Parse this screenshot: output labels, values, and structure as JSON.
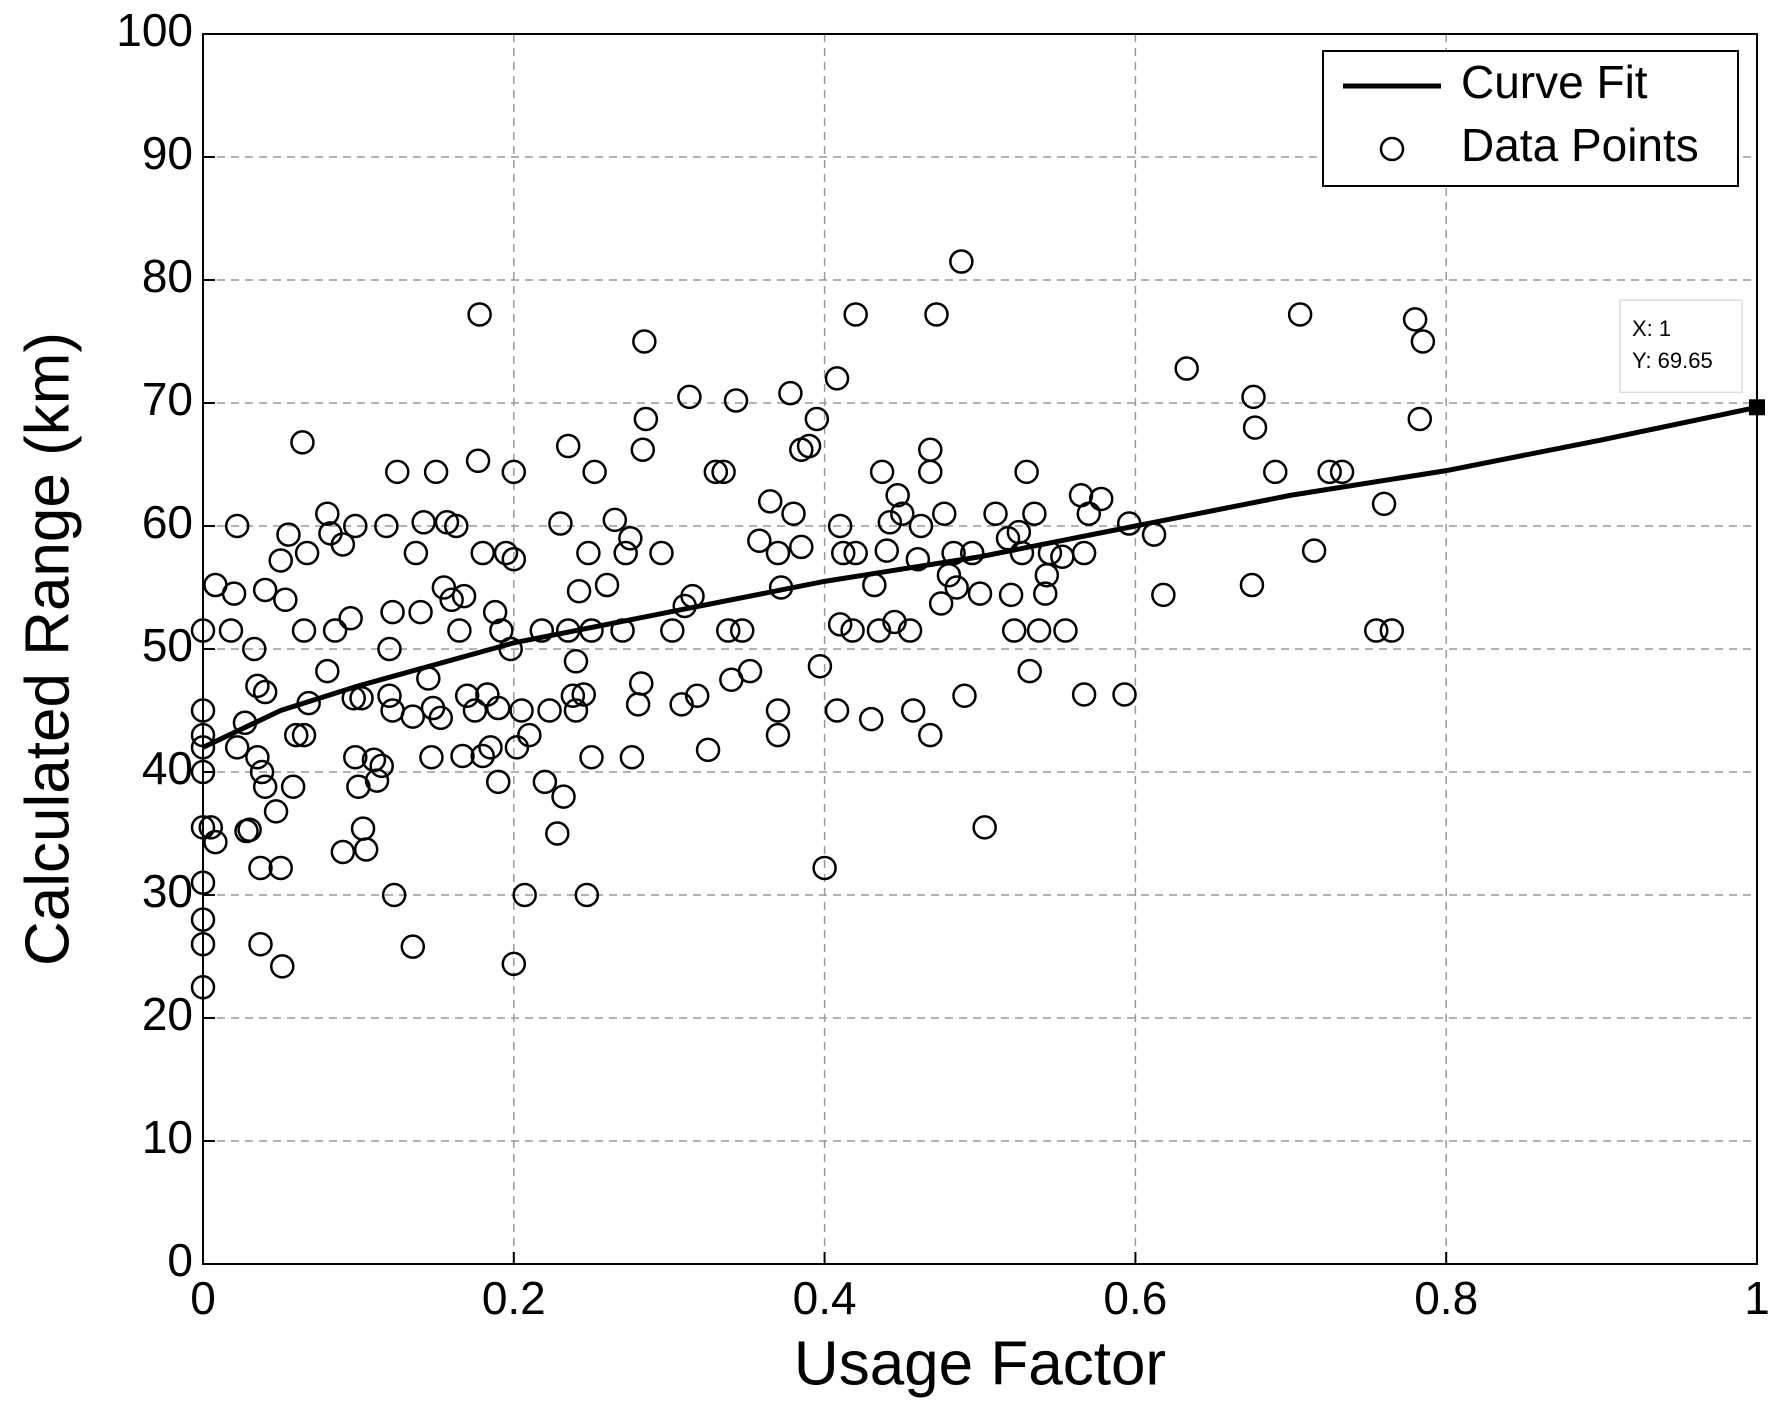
{
  "chart_data": {
    "type": "scatter",
    "xlabel": "Usage Factor",
    "ylabel": "Calculated Range (km)",
    "xlim": [
      0,
      1
    ],
    "ylim": [
      0,
      100
    ],
    "xticks": [
      0,
      0.2,
      0.4,
      0.6,
      0.8,
      1
    ],
    "yticks": [
      0,
      10,
      20,
      30,
      40,
      50,
      60,
      70,
      80,
      90,
      100
    ],
    "grid": true,
    "legend": "upper right",
    "series": [
      {
        "name": "Curve Fit",
        "type": "line",
        "color": "#000000",
        "x": [
          0,
          0.05,
          0.1,
          0.2,
          0.3,
          0.4,
          0.5,
          0.6,
          0.7,
          0.8,
          0.9,
          1
        ],
        "values": [
          42,
          45,
          47,
          50.5,
          53,
          55.5,
          57.5,
          60,
          62.5,
          64.5,
          67,
          69.65
        ]
      },
      {
        "name": "Data Points",
        "type": "scatter",
        "color": "#000000",
        "x": [
          0,
          0,
          0,
          0,
          0,
          0,
          0,
          0,
          0,
          0,
          0.005,
          0.008,
          0.008,
          0.018,
          0.02,
          0.022,
          0.022,
          0.027,
          0.028,
          0.03,
          0.033,
          0.035,
          0.035,
          0.037,
          0.037,
          0.038,
          0.04,
          0.04,
          0.04,
          0.047,
          0.05,
          0.05,
          0.051,
          0.053,
          0.055,
          0.058,
          0.06,
          0.064,
          0.065,
          0.065,
          0.067,
          0.068,
          0.08,
          0.08,
          0.082,
          0.085,
          0.09,
          0.09,
          0.095,
          0.097,
          0.098,
          0.098,
          0.1,
          0.102,
          0.103,
          0.105,
          0.11,
          0.112,
          0.115,
          0.118,
          0.12,
          0.12,
          0.122,
          0.122,
          0.123,
          0.125,
          0.135,
          0.135,
          0.137,
          0.14,
          0.142,
          0.145,
          0.147,
          0.148,
          0.15,
          0.153,
          0.155,
          0.157,
          0.16,
          0.163,
          0.165,
          0.167,
          0.168,
          0.17,
          0.175,
          0.177,
          0.178,
          0.18,
          0.18,
          0.183,
          0.185,
          0.188,
          0.19,
          0.19,
          0.192,
          0.195,
          0.198,
          0.2,
          0.2,
          0.2,
          0.202,
          0.205,
          0.207,
          0.21,
          0.218,
          0.22,
          0.223,
          0.228,
          0.23,
          0.232,
          0.235,
          0.235,
          0.238,
          0.24,
          0.24,
          0.242,
          0.245,
          0.247,
          0.248,
          0.25,
          0.25,
          0.252,
          0.26,
          0.265,
          0.27,
          0.272,
          0.275,
          0.276,
          0.28,
          0.282,
          0.283,
          0.284,
          0.285,
          0.295,
          0.302,
          0.308,
          0.31,
          0.313,
          0.315,
          0.318,
          0.325,
          0.33,
          0.335,
          0.338,
          0.34,
          0.343,
          0.347,
          0.352,
          0.358,
          0.365,
          0.37,
          0.37,
          0.37,
          0.372,
          0.378,
          0.38,
          0.385,
          0.385,
          0.39,
          0.395,
          0.397,
          0.4,
          0.408,
          0.408,
          0.41,
          0.41,
          0.412,
          0.418,
          0.42,
          0.42,
          0.43,
          0.432,
          0.435,
          0.437,
          0.44,
          0.442,
          0.445,
          0.447,
          0.45,
          0.455,
          0.457,
          0.46,
          0.462,
          0.468,
          0.468,
          0.468,
          0.472,
          0.475,
          0.477,
          0.48,
          0.483,
          0.485,
          0.488,
          0.49,
          0.495,
          0.5,
          0.503,
          0.51,
          0.518,
          0.52,
          0.522,
          0.525,
          0.527,
          0.53,
          0.532,
          0.535,
          0.538,
          0.542,
          0.543,
          0.545,
          0.553,
          0.555,
          0.565,
          0.567,
          0.567,
          0.57,
          0.578,
          0.593,
          0.596,
          0.612,
          0.618,
          0.633,
          0.675,
          0.676,
          0.677,
          0.69,
          0.706,
          0.715,
          0.725,
          0.733,
          0.755,
          0.76,
          0.765,
          0.78,
          0.783,
          0.785
        ],
        "values": [
          51.5,
          45,
          43,
          42,
          40,
          35.5,
          31,
          28,
          26,
          22.5,
          35.5,
          34.3,
          55.2,
          51.5,
          54.5,
          42,
          60,
          44,
          35.2,
          35.3,
          50,
          41.2,
          47,
          26,
          32.2,
          40,
          46.5,
          38.8,
          54.8,
          36.8,
          57.2,
          32.2,
          24.2,
          54,
          59.3,
          38.8,
          43,
          66.8,
          51.5,
          43,
          57.8,
          45.6,
          48.2,
          61,
          59.4,
          51.5,
          58.5,
          33.5,
          52.5,
          46,
          60,
          41.2,
          38.8,
          46,
          35.4,
          33.7,
          41,
          39.3,
          40.5,
          60,
          50,
          46.2,
          45,
          53,
          30,
          64.4,
          25.8,
          44.5,
          57.8,
          53,
          60.3,
          47.6,
          41.2,
          45.2,
          64.4,
          44.4,
          55,
          60.3,
          54,
          60,
          51.5,
          41.3,
          54.3,
          46.2,
          45,
          65.3,
          77.2,
          57.8,
          41.3,
          46.3,
          42,
          53,
          45.2,
          39.2,
          51.5,
          57.8,
          50,
          24.4,
          64.4,
          57.3,
          42,
          45,
          30,
          43,
          51.5,
          39.2,
          45,
          35,
          60.2,
          38,
          66.5,
          51.5,
          46.2,
          49,
          45,
          54.7,
          46.3,
          30,
          57.8,
          51.5,
          41.2,
          64.4,
          55.2,
          60.5,
          51.5,
          57.8,
          59,
          41.2,
          45.5,
          47.2,
          66.2,
          75,
          68.7,
          57.8,
          51.5,
          45.5,
          53.5,
          70.5,
          54.3,
          46.2,
          41.8,
          64.4,
          64.4,
          51.5,
          47.5,
          70.2,
          51.5,
          48.2,
          58.8,
          62,
          57.8,
          45,
          43,
          55,
          70.8,
          61,
          58.3,
          66.2,
          66.5,
          68.7,
          48.6,
          32.2,
          72,
          45,
          60,
          52,
          57.8,
          51.5,
          77.2,
          57.8,
          44.3,
          55.2,
          51.5,
          64.4,
          58,
          60.3,
          52.2,
          62.5,
          61,
          51.5,
          45,
          57.3,
          60,
          66.2,
          64.4,
          43,
          77.2,
          53.7,
          61,
          56,
          57.8,
          55,
          81.5,
          46.2,
          57.8,
          54.5,
          35.5,
          61,
          59,
          54.4,
          51.5,
          59.5,
          57.8,
          64.4,
          48.2,
          61,
          51.5,
          54.5,
          56,
          57.8,
          57.5,
          51.5,
          62.5,
          46.3,
          57.8,
          61,
          62.2,
          46.3,
          60.2,
          59.3,
          54.4,
          72.8,
          55.2,
          70.5,
          68,
          64.4,
          77.2,
          58,
          64.4,
          64.4,
          51.5,
          61.8,
          51.5,
          76.8,
          68.7,
          75
        ]
      }
    ],
    "annotations": [
      {
        "x": 1,
        "y": 69.65,
        "lines": [
          "X: 1",
          "Y: 69.65"
        ]
      }
    ]
  }
}
